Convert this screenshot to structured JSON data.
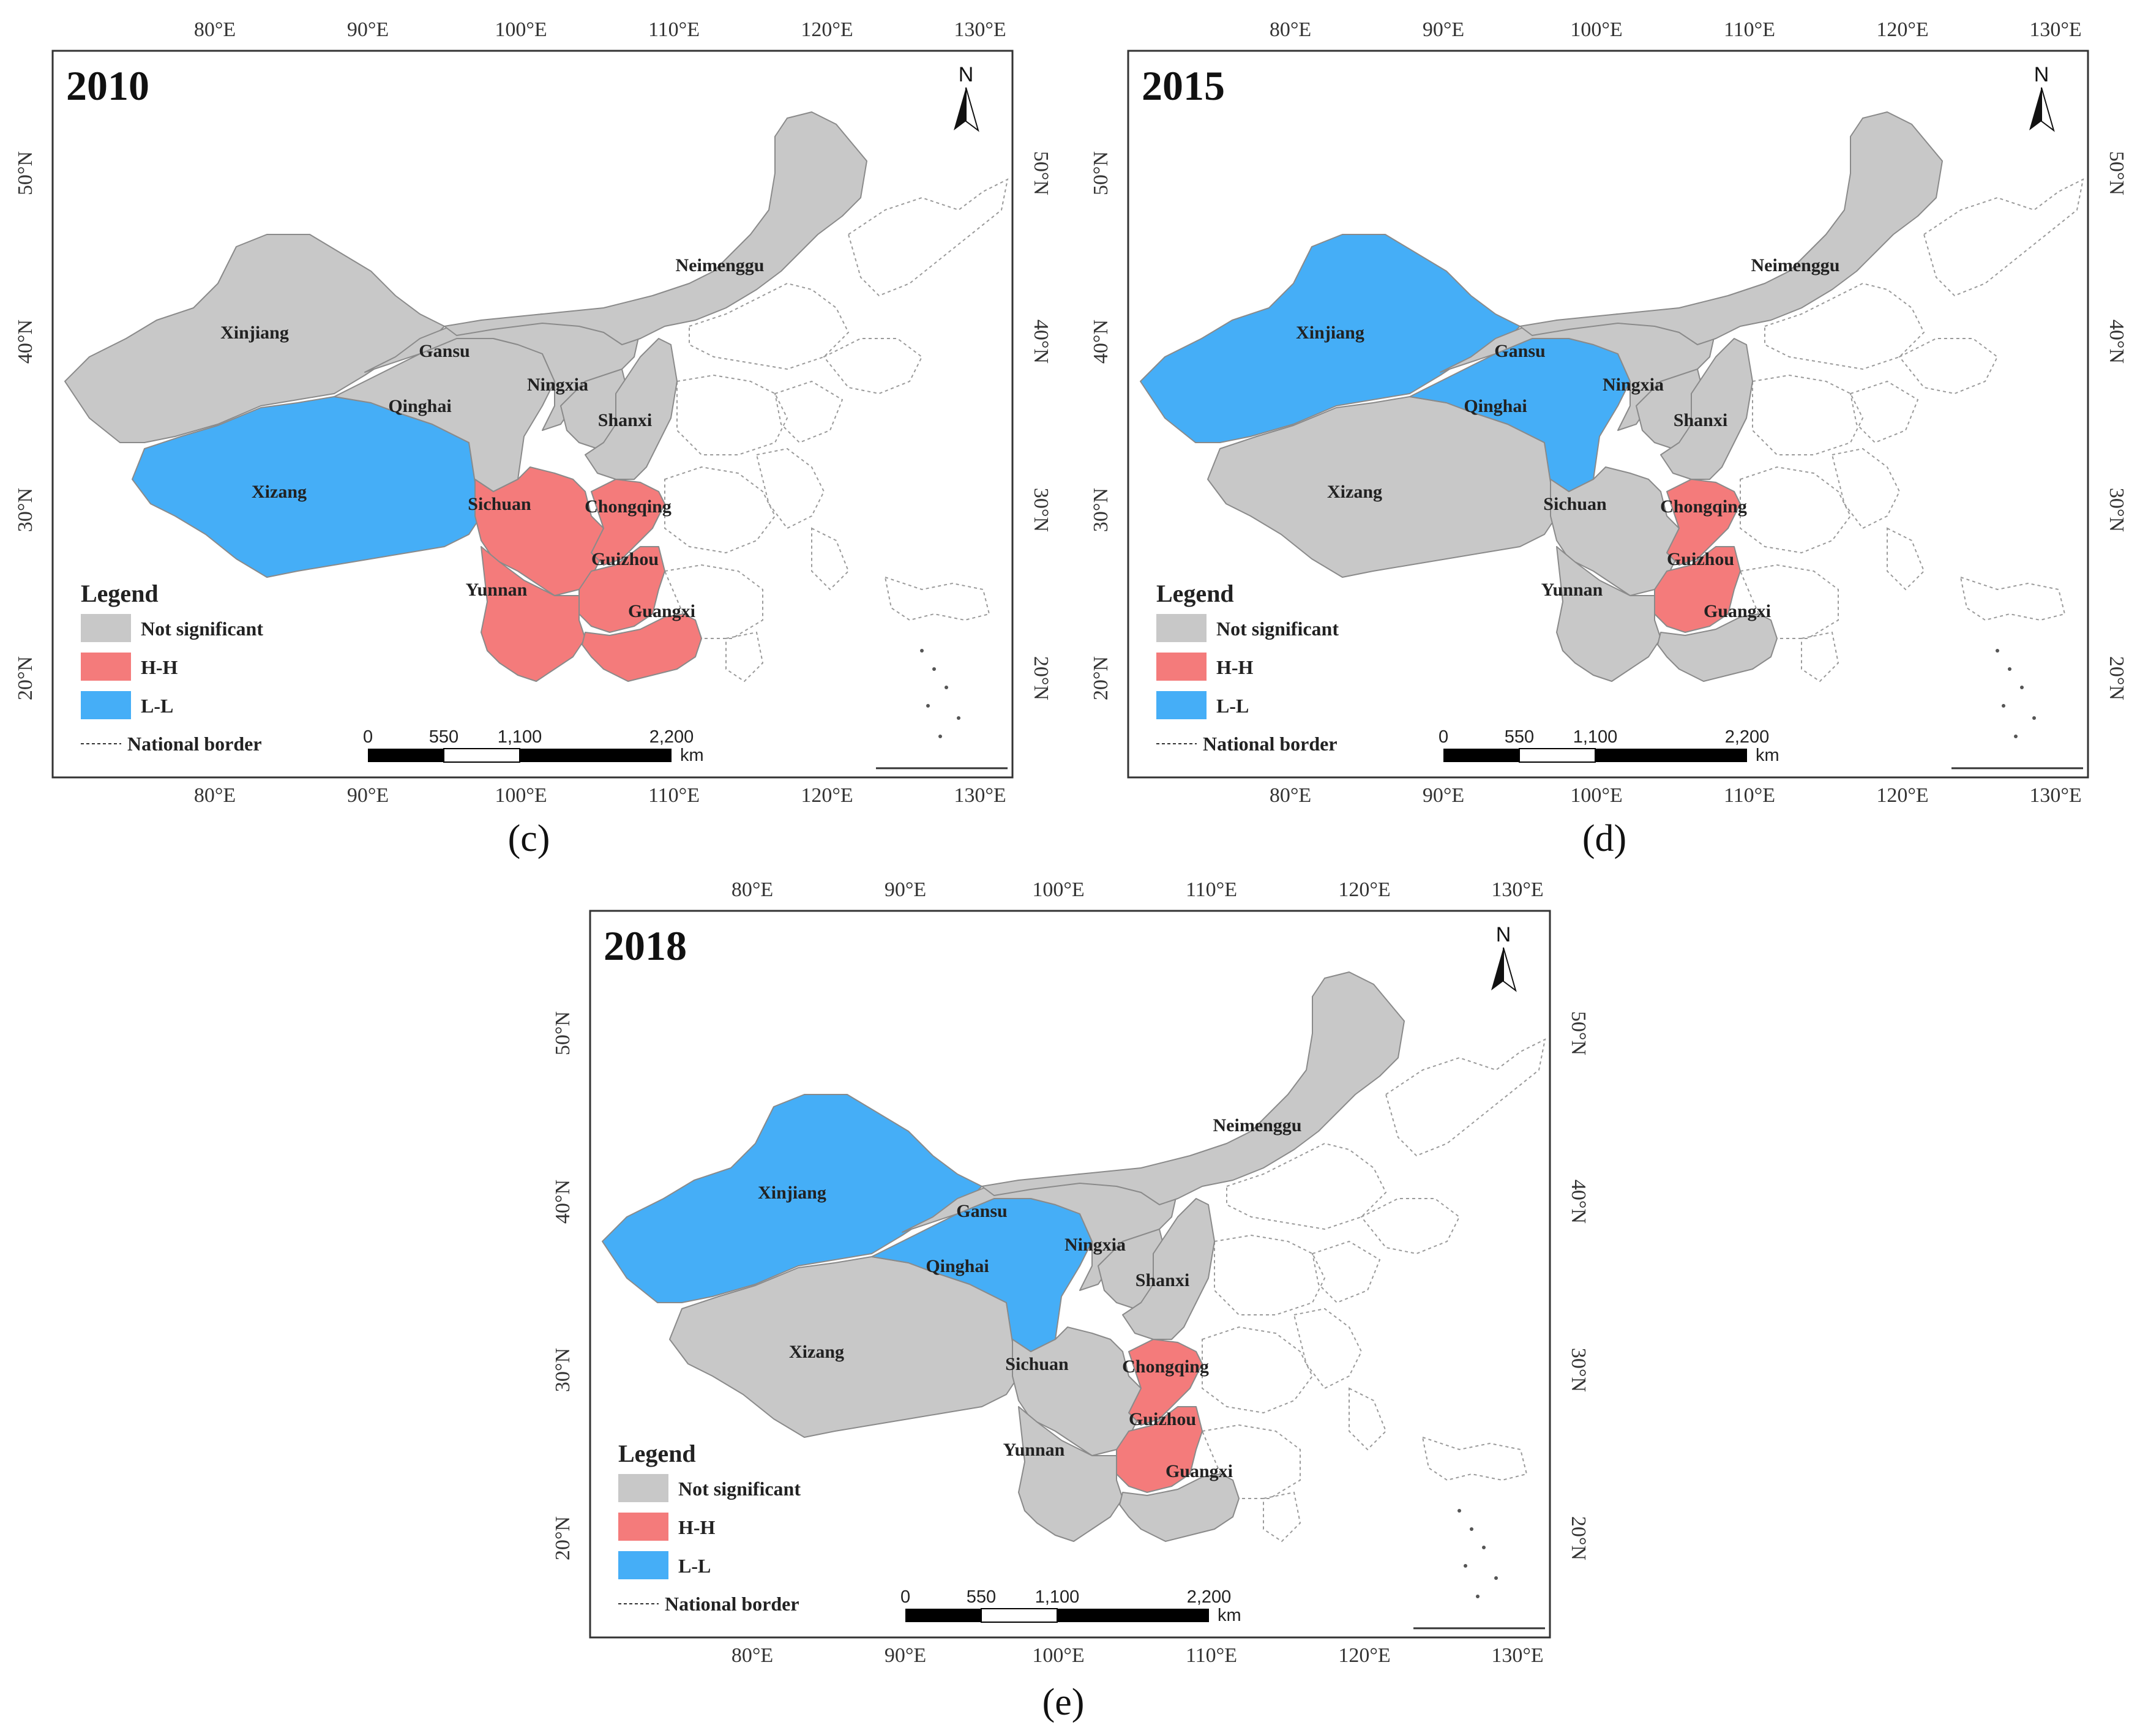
{
  "colors": {
    "not_significant": "#c8c8c8",
    "hh": "#f47b7b",
    "ll": "#45aef7"
  },
  "panels": [
    {
      "year": "2010",
      "caption": "(c)",
      "assignments": {
        "Xinjiang": "not_significant",
        "Xizang": "ll",
        "Qinghai": "not_significant",
        "Gansu": "not_significant",
        "Neimenggu": "not_significant",
        "Ningxia": "not_significant",
        "Shanxi": "not_significant",
        "Sichuan": "hh",
        "Chongqing": "hh",
        "Guizhou": "hh",
        "Yunnan": "hh",
        "Guangxi": "hh"
      }
    },
    {
      "year": "2015",
      "caption": "(d)",
      "assignments": {
        "Xinjiang": "ll",
        "Xizang": "not_significant",
        "Qinghai": "ll",
        "Gansu": "not_significant",
        "Neimenggu": "not_significant",
        "Ningxia": "not_significant",
        "Shanxi": "not_significant",
        "Sichuan": "not_significant",
        "Chongqing": "hh",
        "Guizhou": "hh",
        "Yunnan": "not_significant",
        "Guangxi": "not_significant"
      }
    },
    {
      "year": "2018",
      "caption": "(e)",
      "assignments": {
        "Xinjiang": "ll",
        "Xizang": "not_significant",
        "Qinghai": "ll",
        "Gansu": "not_significant",
        "Neimenggu": "not_significant",
        "Ningxia": "not_significant",
        "Shanxi": "not_significant",
        "Sichuan": "not_significant",
        "Chongqing": "hh",
        "Guizhou": "hh",
        "Yunnan": "not_significant",
        "Guangxi": "not_significant"
      }
    }
  ],
  "province_labels": {
    "Xinjiang": "Xinjiang",
    "Xizang": "Xizang",
    "Qinghai": "Qinghai",
    "Gansu": "Gansu",
    "Neimenggu": "Neimenggu",
    "Ningxia": "Ningxia",
    "Shanxi": "Shanxi",
    "Sichuan": "Sichuan",
    "Chongqing": "Chongqing",
    "Guizhou": "Guizhou",
    "Yunnan": "Yunnan",
    "Guangxi": "Guangxi"
  },
  "legend": {
    "title": "Legend",
    "items": [
      "Not significant",
      "H-H",
      "L-L"
    ],
    "border_label": "National border"
  },
  "scale_bar": {
    "ticks": [
      "0",
      "550",
      "1,100",
      "2,200"
    ],
    "unit": "km"
  },
  "north_label": "N",
  "lon_labels": [
    "80°E",
    "90°E",
    "100°E",
    "110°E",
    "120°E",
    "130°E"
  ],
  "lat_labels": [
    "50°N",
    "40°N",
    "30°N",
    "20°N"
  ]
}
